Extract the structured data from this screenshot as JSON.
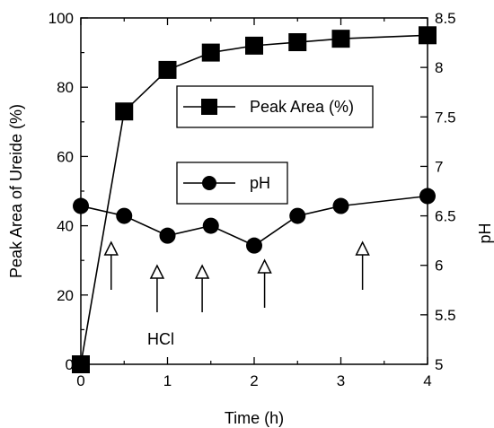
{
  "chart_data": {
    "type": "line",
    "xlabel": "Time (h)",
    "ylabel_left": "Peak Area of Ureide (%)",
    "ylabel_right": "pH",
    "xlim": [
      0,
      4
    ],
    "ylim_left": [
      0,
      100
    ],
    "ylim_right": [
      5,
      8.5
    ],
    "x_ticks": [
      0,
      1,
      2,
      3,
      4
    ],
    "y_left_ticks": [
      0,
      20,
      40,
      60,
      80,
      100
    ],
    "y_right_ticks": [
      5,
      5.5,
      6,
      6.5,
      7,
      7.5,
      8,
      8.5
    ],
    "x_tick_labels": [
      "0",
      "1",
      "2",
      "3",
      "4"
    ],
    "y_left_tick_labels": [
      "0",
      "20",
      "40",
      "60",
      "80",
      "100"
    ],
    "y_right_tick_labels": [
      "5",
      "5.5",
      "6",
      "6.5",
      "7",
      "7.5",
      "8",
      "8.5"
    ],
    "grid": false,
    "series": [
      {
        "name": "Peak Area (%)",
        "axis": "left",
        "marker": "square",
        "x": [
          0,
          0.5,
          1,
          1.5,
          2,
          2.5,
          3,
          4
        ],
        "y": [
          0,
          73,
          85,
          90,
          92,
          93,
          94,
          95
        ]
      },
      {
        "name": "pH",
        "axis": "right",
        "marker": "circle",
        "x": [
          0,
          0.5,
          1,
          1.5,
          2,
          2.5,
          3,
          4
        ],
        "y": [
          6.6,
          6.5,
          6.3,
          6.4,
          6.2,
          6.5,
          6.6,
          6.7
        ]
      }
    ],
    "annotations": {
      "hcl_label": "HCl",
      "hcl_arrow_times": [
        0.35,
        0.88,
        1.4,
        2.12,
        3.25
      ]
    },
    "colors": {
      "line": "#000000",
      "marker_fill": "#000000",
      "background": "#ffffff"
    }
  }
}
